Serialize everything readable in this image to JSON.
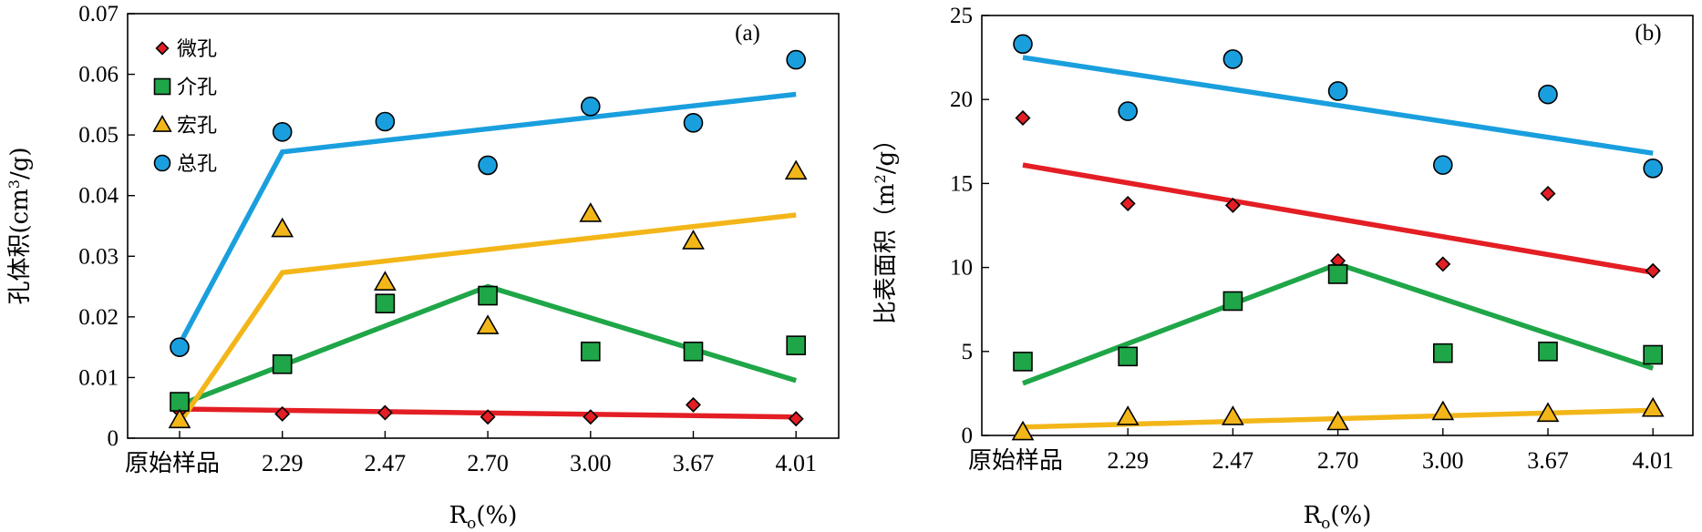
{
  "chart_data": [
    {
      "type": "scatter",
      "panel_label": "(a)",
      "categories": [
        "原始样品",
        "2.29",
        "2.47",
        "2.70",
        "3.00",
        "3.67",
        "4.01"
      ],
      "xlabel_main": "R",
      "xlabel_sub": "o",
      "xlabel_tail": "(%)",
      "ylabel_main": "孔体积(cm",
      "ylabel_sup": "3",
      "ylabel_tail": "/g)",
      "ylim": [
        0,
        0.07
      ],
      "yticks": [
        "0",
        "0.01",
        "0.02",
        "0.03",
        "0.04",
        "0.05",
        "0.06",
        "0.07"
      ],
      "grid": false,
      "legend_position": "top-left",
      "series": [
        {
          "name": "微孔",
          "marker": "diamond",
          "color": "#e31e24",
          "values": [
            0.0045,
            0.004,
            0.0042,
            0.0035,
            0.0035,
            0.0055,
            0.0032
          ],
          "trend": [
            [
              0,
              0.0048
            ],
            [
              6,
              0.0035
            ]
          ]
        },
        {
          "name": "介孔",
          "marker": "square",
          "color": "#1fa648",
          "values": [
            0.006,
            0.0122,
            0.0222,
            0.0235,
            0.0143,
            0.0143,
            0.0153
          ],
          "trend": [
            [
              0,
              0.0055
            ],
            [
              3,
              0.025
            ],
            [
              6,
              0.0095
            ]
          ]
        },
        {
          "name": "宏孔",
          "marker": "triangle",
          "color": "#f3b619",
          "values": [
            0.003,
            0.0345,
            0.0257,
            0.0185,
            0.037,
            0.0325,
            0.044
          ],
          "trend": [
            [
              0,
              0.0025
            ],
            [
              1,
              0.0273
            ],
            [
              6,
              0.0368
            ]
          ]
        },
        {
          "name": "总孔",
          "marker": "circle",
          "color": "#1a9fde",
          "values": [
            0.015,
            0.0505,
            0.0522,
            0.045,
            0.0547,
            0.052,
            0.0624
          ],
          "trend": [
            [
              0,
              0.0155
            ],
            [
              1,
              0.0472
            ],
            [
              6,
              0.0567
            ]
          ]
        }
      ]
    },
    {
      "type": "scatter",
      "panel_label": "(b)",
      "categories": [
        "原始样品",
        "2.29",
        "2.47",
        "2.70",
        "3.00",
        "3.67",
        "4.01"
      ],
      "xlabel_main": "R",
      "xlabel_sub": "o",
      "xlabel_tail": "(%)",
      "ylabel_main": "比表面积（m",
      "ylabel_sup": "2",
      "ylabel_tail": "/g）",
      "ylim": [
        0,
        25
      ],
      "yticks": [
        "0",
        "5",
        "10",
        "15",
        "20",
        "25"
      ],
      "grid": false,
      "series": [
        {
          "name": "微孔",
          "marker": "diamond",
          "color": "#e31e24",
          "values": [
            18.9,
            13.8,
            13.7,
            10.4,
            10.2,
            14.4,
            9.8
          ],
          "trend": [
            [
              0,
              16.1
            ],
            [
              6,
              9.7
            ]
          ]
        },
        {
          "name": "介孔",
          "marker": "square",
          "color": "#1fa648",
          "values": [
            4.4,
            4.7,
            8.0,
            9.6,
            4.9,
            5.0,
            4.8
          ],
          "trend": [
            [
              0,
              3.1
            ],
            [
              3,
              10.2
            ],
            [
              6,
              4.0
            ]
          ]
        },
        {
          "name": "宏孔",
          "marker": "triangle",
          "color": "#f3b619",
          "values": [
            0.2,
            1.1,
            1.1,
            0.8,
            1.4,
            1.3,
            1.6
          ],
          "trend": [
            [
              0,
              0.5
            ],
            [
              6,
              1.5
            ]
          ]
        },
        {
          "name": "总孔",
          "marker": "circle",
          "color": "#1a9fde",
          "values": [
            23.3,
            19.3,
            22.4,
            20.5,
            16.1,
            20.3,
            15.9
          ],
          "trend": [
            [
              0,
              22.5
            ],
            [
              6,
              16.8
            ]
          ]
        }
      ]
    }
  ]
}
